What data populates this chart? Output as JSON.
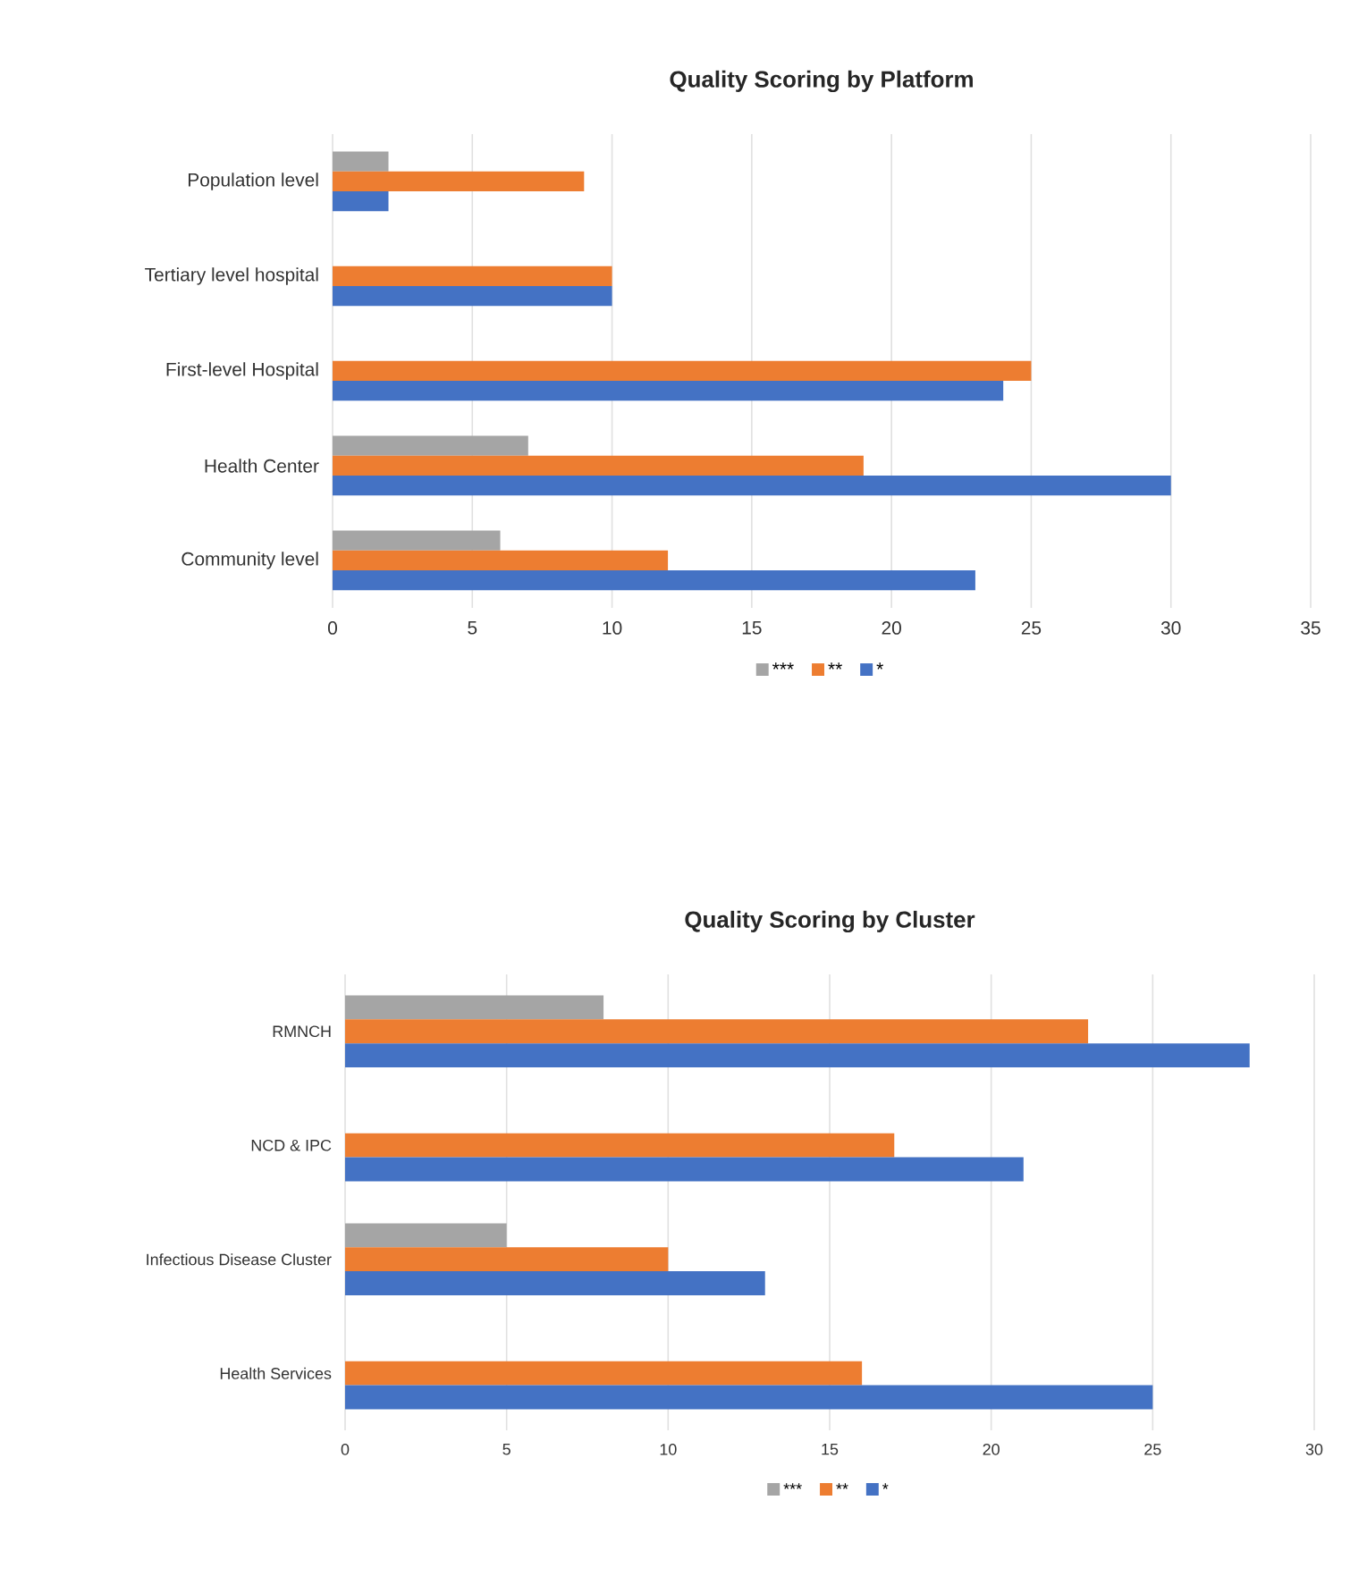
{
  "chart_data": [
    {
      "type": "bar",
      "orientation": "horizontal",
      "title": "Quality Scoring by Platform",
      "categories": [
        "Population level",
        "Tertiary level hospital",
        "First-level Hospital",
        "Health Center",
        "Community level"
      ],
      "series": [
        {
          "name": "***",
          "color": "#a5a5a5",
          "values": [
            2,
            null,
            null,
            7,
            6
          ]
        },
        {
          "name": "**",
          "color": "#ed7d31",
          "values": [
            9,
            10,
            25,
            19,
            12
          ]
        },
        {
          "name": "*",
          "color": "#4472c4",
          "values": [
            2,
            10,
            24,
            30,
            23
          ]
        }
      ],
      "xlim": [
        0,
        35
      ],
      "xticks": [
        0,
        5,
        10,
        15,
        20,
        25,
        30,
        35
      ],
      "grid": "x",
      "legend": "bottom"
    },
    {
      "type": "bar",
      "orientation": "horizontal",
      "title": "Quality Scoring by Cluster",
      "categories": [
        "RMNCH",
        "NCD & IPC",
        "Infectious Disease Cluster",
        "Health Services"
      ],
      "series": [
        {
          "name": "***",
          "color": "#a5a5a5",
          "values": [
            8,
            null,
            5,
            null
          ]
        },
        {
          "name": "**",
          "color": "#ed7d31",
          "values": [
            23,
            17,
            10,
            16
          ]
        },
        {
          "name": "*",
          "color": "#4472c4",
          "values": [
            28,
            21,
            13,
            25
          ]
        }
      ],
      "xlim": [
        0,
        30
      ],
      "xticks": [
        0,
        5,
        10,
        15,
        20,
        25,
        30
      ],
      "grid": "x",
      "legend": "bottom"
    }
  ]
}
